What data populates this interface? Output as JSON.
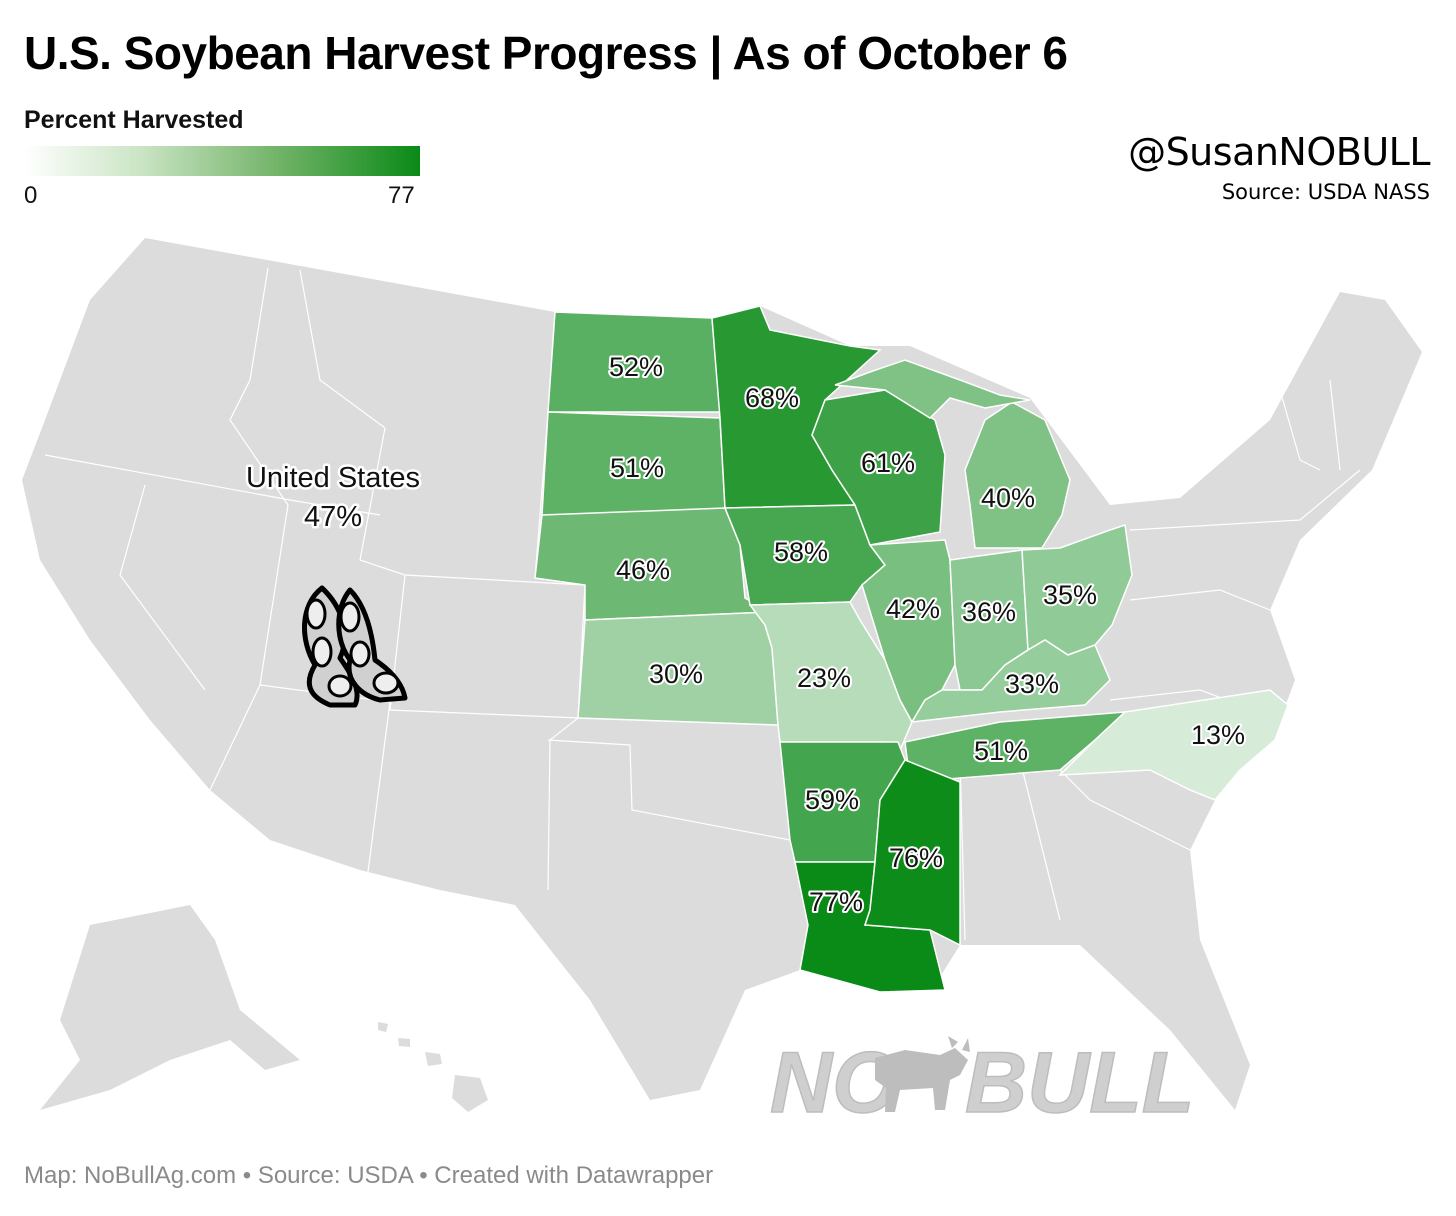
{
  "header": {
    "title": "U.S. Soybean Harvest Progress | As of October 6",
    "legend_title": "Percent Harvested",
    "legend_min": "0",
    "legend_max": "77",
    "handle": "@SusanNOBULL",
    "source": "Source: USDA NASS"
  },
  "national": {
    "name": "United States",
    "value_label": "47%"
  },
  "colors": {
    "no_data": "#dcdcdc",
    "scale_min": "#ffffff",
    "scale_max": "#0a8a17",
    "border": "#ffffff"
  },
  "states": {
    "nd": {
      "value": 52,
      "label": "52%"
    },
    "sd": {
      "value": 51,
      "label": "51%"
    },
    "ne": {
      "value": 46,
      "label": "46%"
    },
    "ks": {
      "value": 30,
      "label": "30%"
    },
    "mn": {
      "value": 68,
      "label": "68%"
    },
    "ia": {
      "value": 58,
      "label": "58%"
    },
    "mo": {
      "value": 23,
      "label": "23%"
    },
    "ar": {
      "value": 59,
      "label": "59%"
    },
    "la": {
      "value": 77,
      "label": "77%"
    },
    "wi": {
      "value": 61,
      "label": "61%"
    },
    "mi": {
      "value": 40,
      "label": "40%"
    },
    "il": {
      "value": 42,
      "label": "42%"
    },
    "in": {
      "value": 36,
      "label": "36%"
    },
    "oh": {
      "value": 35,
      "label": "35%"
    },
    "ky": {
      "value": 33,
      "label": "33%"
    },
    "tn": {
      "value": 51,
      "label": "51%"
    },
    "ms": {
      "value": 76,
      "label": "76%"
    },
    "nc": {
      "value": 13,
      "label": "13%"
    }
  },
  "watermark": {
    "left": "NO",
    "right": "BULL",
    "icon": "bull-icon"
  },
  "decoration": {
    "icon": "soybean-pods-icon"
  },
  "footer": {
    "credit": "Map: NoBullAg.com • Source: USDA • Created with Datawrapper"
  }
}
